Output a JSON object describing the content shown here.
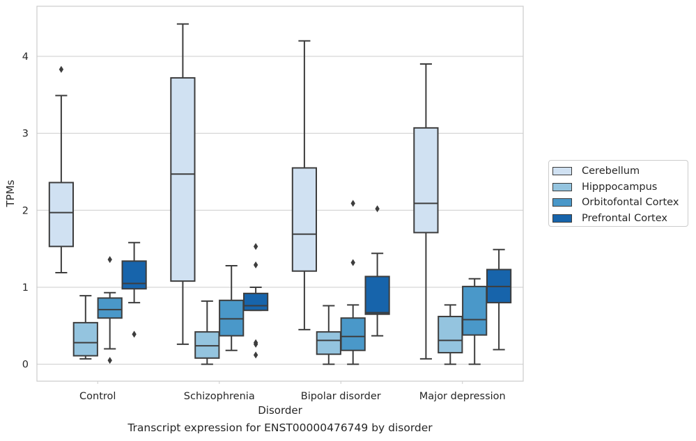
{
  "chart_data": {
    "type": "boxplot",
    "title": "Transcript expression for ENST00000476749 by disorder",
    "xlabel": "Disorder",
    "ylabel": "TPMs",
    "ylim": [
      -0.22,
      4.65
    ],
    "yticks": [
      0,
      1,
      2,
      3,
      4
    ],
    "grid": "horizontal",
    "legend_position": "right",
    "categories": [
      "Control",
      "Schizophrenia",
      "Bipolar disorder",
      "Major depression"
    ],
    "series": [
      {
        "name": "Cerebellum",
        "color": "#d0e1f2",
        "boxes": [
          {
            "whislo": 1.19,
            "q1": 1.53,
            "med": 1.97,
            "q3": 2.36,
            "whishi": 3.49,
            "fliers": [
              3.83
            ]
          },
          {
            "whislo": 0.26,
            "q1": 1.08,
            "med": 2.47,
            "q3": 3.72,
            "whishi": 4.42,
            "fliers": []
          },
          {
            "whislo": 0.45,
            "q1": 1.21,
            "med": 1.69,
            "q3": 2.55,
            "whishi": 4.2,
            "fliers": []
          },
          {
            "whislo": 0.07,
            "q1": 1.71,
            "med": 2.09,
            "q3": 3.07,
            "whishi": 3.9,
            "fliers": []
          }
        ]
      },
      {
        "name": "Hipppocampus",
        "color": "#94c4df",
        "boxes": [
          {
            "whislo": 0.07,
            "q1": 0.11,
            "med": 0.28,
            "q3": 0.54,
            "whishi": 0.89,
            "fliers": []
          },
          {
            "whislo": 0.0,
            "q1": 0.08,
            "med": 0.24,
            "q3": 0.42,
            "whishi": 0.82,
            "fliers": []
          },
          {
            "whislo": 0.0,
            "q1": 0.13,
            "med": 0.31,
            "q3": 0.42,
            "whishi": 0.76,
            "fliers": []
          },
          {
            "whislo": 0.0,
            "q1": 0.15,
            "med": 0.31,
            "q3": 0.62,
            "whishi": 0.77,
            "fliers": []
          }
        ]
      },
      {
        "name": "Orbitofontal Cortex",
        "color": "#4a98c9",
        "boxes": [
          {
            "whislo": 0.2,
            "q1": 0.6,
            "med": 0.71,
            "q3": 0.86,
            "whishi": 0.93,
            "fliers": [
              1.36,
              0.05
            ]
          },
          {
            "whislo": 0.18,
            "q1": 0.37,
            "med": 0.59,
            "q3": 0.83,
            "whishi": 1.28,
            "fliers": []
          },
          {
            "whislo": 0.0,
            "q1": 0.18,
            "med": 0.36,
            "q3": 0.6,
            "whishi": 0.77,
            "fliers": [
              1.32,
              2.09
            ]
          },
          {
            "whislo": 0.0,
            "q1": 0.38,
            "med": 0.58,
            "q3": 1.01,
            "whishi": 1.11,
            "fliers": []
          }
        ]
      },
      {
        "name": "Prefrontal Cortex",
        "color": "#1764ab",
        "boxes": [
          {
            "whislo": 0.8,
            "q1": 0.98,
            "med": 1.05,
            "q3": 1.34,
            "whishi": 1.58,
            "fliers": [
              0.39
            ]
          },
          {
            "whislo": 0.7,
            "q1": 0.7,
            "med": 0.76,
            "q3": 0.92,
            "whishi": 1.0,
            "fliers": [
              0.12,
              0.26,
              0.28,
              1.29,
              1.53
            ]
          },
          {
            "whislo": 0.37,
            "q1": 0.65,
            "med": 0.67,
            "q3": 1.14,
            "whishi": 1.44,
            "fliers": [
              2.02
            ]
          },
          {
            "whislo": 0.19,
            "q1": 0.8,
            "med": 1.01,
            "q3": 1.23,
            "whishi": 1.49,
            "fliers": []
          }
        ]
      }
    ]
  }
}
